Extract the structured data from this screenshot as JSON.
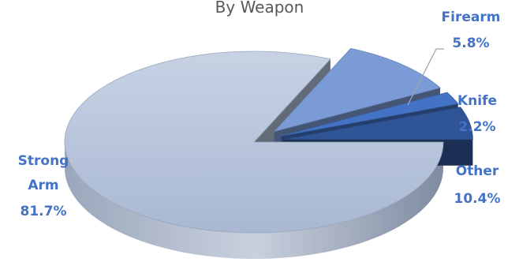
{
  "chart_data": {
    "type": "pie",
    "title": "By Weapon",
    "slices": [
      {
        "label": "Firearm",
        "value": 5.8,
        "display": "5.8%",
        "color": "#2F5597"
      },
      {
        "label": "Knife",
        "value": 2.2,
        "display": "2.2%",
        "color": "#4472C4"
      },
      {
        "label": "Other",
        "value": 10.4,
        "display": "10.4%",
        "color": "#7B9BD6"
      },
      {
        "label": [
          "Strong",
          "Arm"
        ],
        "value": 81.7,
        "display": "81.7%",
        "color": "#B4C3DC"
      }
    ],
    "style": "3d-exploded",
    "label_color": "#4472C4",
    "title_color": "#595959"
  }
}
